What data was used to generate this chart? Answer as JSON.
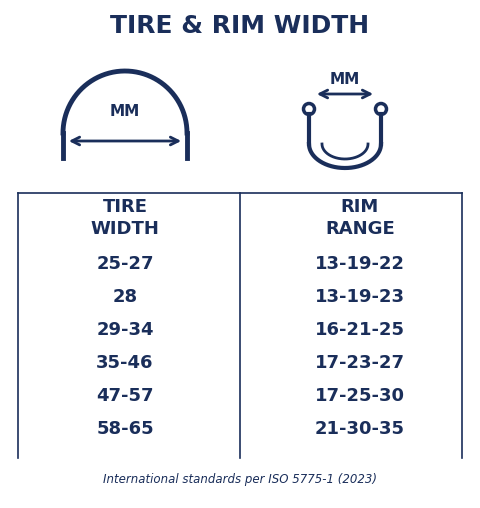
{
  "title": "TIRE & RIM WIDTH",
  "background_color": "#ffffff",
  "primary_color": "#1a2e5a",
  "table_headers": [
    "TIRE\nWIDTH",
    "RIM\nRANGE"
  ],
  "tire_widths": [
    "25-27",
    "28",
    "29-34",
    "35-46",
    "47-57",
    "58-65"
  ],
  "rim_ranges": [
    "13-19-22",
    "13-19-23",
    "16-21-25",
    "17-23-27",
    "17-25-30",
    "21-30-35"
  ],
  "footer": "International standards per ISO 5775-1 (2023)",
  "mm_label": "MM"
}
